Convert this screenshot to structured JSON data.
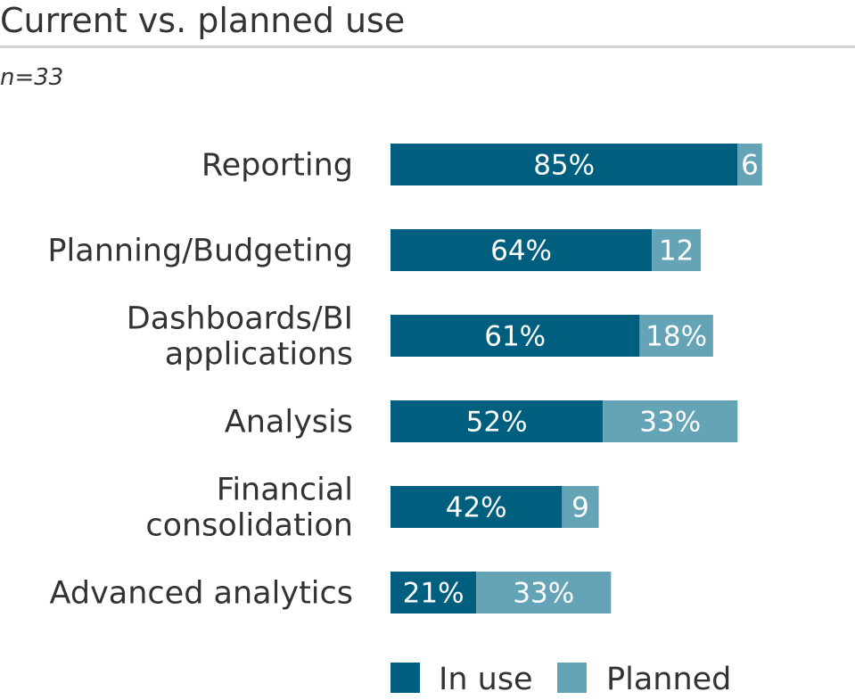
{
  "header": {
    "title": "Current vs. planned use",
    "subtitle": "n=33"
  },
  "colors": {
    "in_use": "#005f7f",
    "planned": "#65a3b7"
  },
  "chart_data": {
    "type": "bar",
    "orientation": "horizontal",
    "stacked": true,
    "title": "Current vs. planned use",
    "subtitle": "n=33",
    "categories": [
      [
        "Reporting"
      ],
      [
        "Planning/Budgeting"
      ],
      [
        "Dashboards/BI",
        "applications"
      ],
      [
        "Analysis"
      ],
      [
        "Financial",
        "consolidation"
      ],
      [
        "Advanced analytics"
      ]
    ],
    "series": [
      {
        "name": "In use",
        "values": [
          85,
          64,
          61,
          52,
          42,
          21
        ],
        "labels": [
          "85%",
          "64%",
          "61%",
          "52%",
          "42%",
          "21%"
        ]
      },
      {
        "name": "Planned",
        "values": [
          6,
          12,
          18,
          33,
          9,
          33
        ],
        "labels": [
          "6",
          "12",
          "18%",
          "33%",
          "9",
          "33%"
        ]
      }
    ],
    "xlim": [
      0,
      100
    ],
    "grid": false,
    "legend": "bottom"
  }
}
